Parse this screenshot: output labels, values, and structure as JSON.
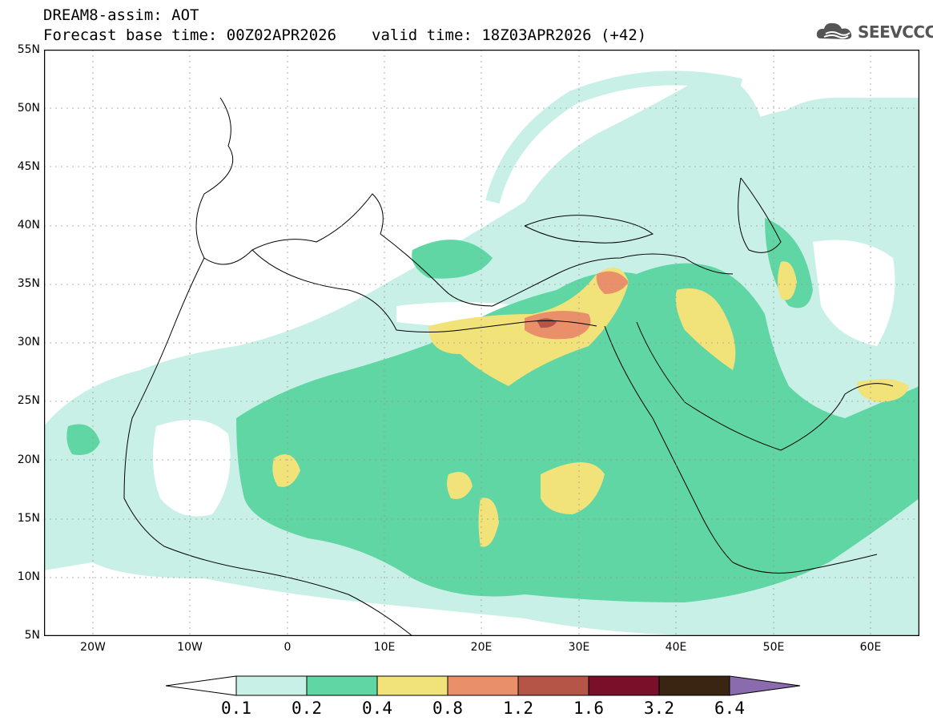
{
  "title": {
    "product": "DREAM8-assim: AOT",
    "base_time": "Forecast base time: 00Z02APR2026",
    "valid_time": "valid time: 18Z03APR2026 (+42)"
  },
  "logo": {
    "text": "SEEVCCC",
    "icon": "cloud-logo-icon"
  },
  "axes": {
    "lat_labels": [
      "55N",
      "50N",
      "45N",
      "40N",
      "35N",
      "30N",
      "25N",
      "20N",
      "15N",
      "10N",
      "5N"
    ],
    "lon_labels": [
      "20W",
      "10W",
      "0",
      "10E",
      "20E",
      "30E",
      "40E",
      "50E",
      "60E"
    ],
    "lon_range": [
      -25,
      65
    ],
    "lat_range": [
      5,
      55
    ]
  },
  "colorbar": {
    "labels": [
      "0.1",
      "0.2",
      "0.4",
      "0.8",
      "1.2",
      "1.6",
      "3.2",
      "6.4"
    ],
    "colors": [
      "#ffffff",
      "#c8f0e6",
      "#5fd6a4",
      "#f2e27a",
      "#e9906a",
      "#b55548",
      "#7a0f2a",
      "#3a2412",
      "#8a6cae"
    ]
  }
}
